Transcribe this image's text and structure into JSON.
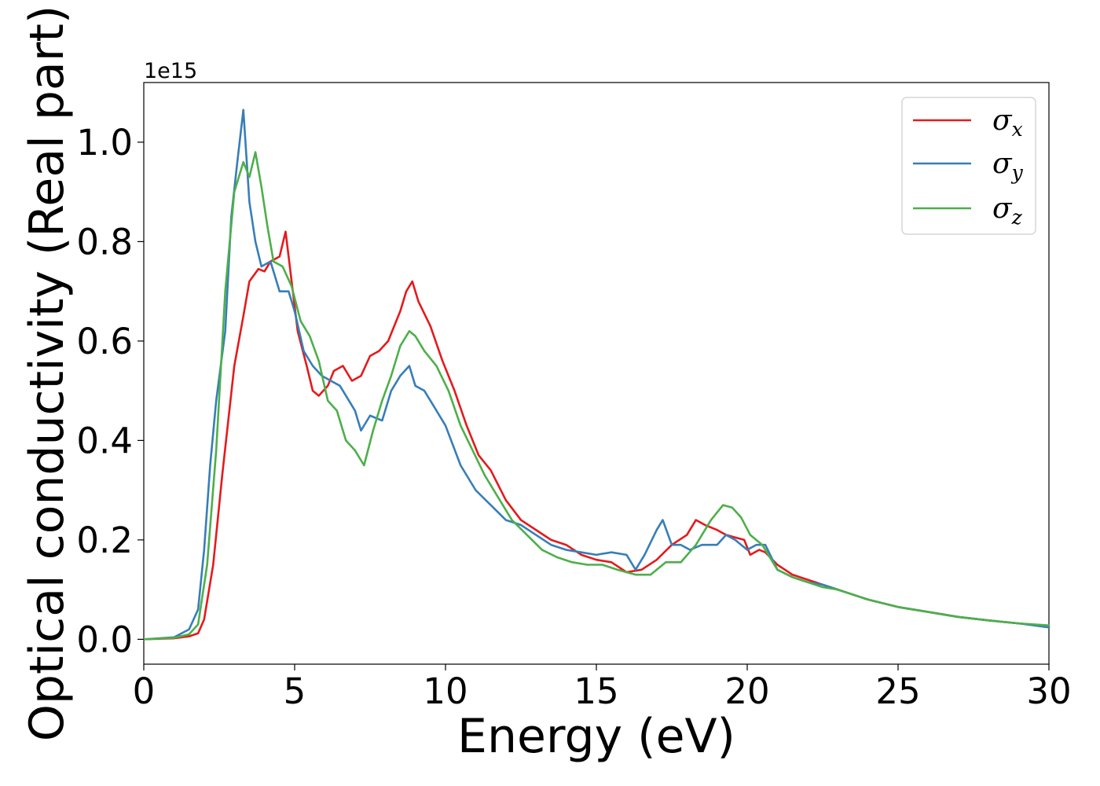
{
  "chart_data": {
    "type": "line",
    "xlabel": "Energy (eV)",
    "ylabel": "Optical conductivity (Real part)",
    "y_offset_label": "1e15",
    "xlim": [
      0,
      30
    ],
    "ylim": [
      -0.05,
      1.12
    ],
    "xticks": [
      0,
      5,
      10,
      15,
      20,
      25,
      30
    ],
    "yticks": [
      0.0,
      0.2,
      0.4,
      0.6,
      0.8,
      1.0
    ],
    "ytick_labels": [
      "0.0",
      "0.2",
      "0.4",
      "0.6",
      "0.8",
      "1.0"
    ],
    "grid": false,
    "legend_position": "top-right",
    "series": [
      {
        "name": "σx",
        "symbol": "σ",
        "subscript": "x",
        "color": "#e41a1c",
        "x": [
          0,
          1,
          1.5,
          1.8,
          2.0,
          2.3,
          2.6,
          3.0,
          3.3,
          3.5,
          3.8,
          4.0,
          4.2,
          4.5,
          4.7,
          4.9,
          5.1,
          5.4,
          5.6,
          5.8,
          6.1,
          6.3,
          6.6,
          6.9,
          7.2,
          7.5,
          7.8,
          8.1,
          8.3,
          8.5,
          8.7,
          8.9,
          9.1,
          9.5,
          9.9,
          10.3,
          10.7,
          11.1,
          11.5,
          12,
          12.5,
          13,
          13.5,
          14,
          14.5,
          15,
          15.5,
          16,
          16.5,
          17,
          17.5,
          18,
          18.3,
          18.6,
          19,
          19.3,
          19.6,
          19.9,
          20.1,
          20.4,
          20.6,
          21,
          21.5,
          22,
          22.5,
          23,
          23.5,
          24,
          25,
          26,
          27,
          28,
          29,
          30
        ],
        "y": [
          0,
          0.002,
          0.006,
          0.012,
          0.04,
          0.15,
          0.33,
          0.55,
          0.65,
          0.72,
          0.745,
          0.74,
          0.76,
          0.77,
          0.82,
          0.72,
          0.62,
          0.55,
          0.5,
          0.49,
          0.51,
          0.54,
          0.55,
          0.52,
          0.53,
          0.57,
          0.58,
          0.6,
          0.63,
          0.66,
          0.7,
          0.72,
          0.68,
          0.63,
          0.56,
          0.5,
          0.43,
          0.37,
          0.34,
          0.28,
          0.24,
          0.22,
          0.2,
          0.19,
          0.17,
          0.16,
          0.155,
          0.135,
          0.14,
          0.16,
          0.19,
          0.21,
          0.24,
          0.23,
          0.22,
          0.21,
          0.205,
          0.2,
          0.17,
          0.18,
          0.175,
          0.15,
          0.13,
          0.12,
          0.11,
          0.1,
          0.09,
          0.08,
          0.065,
          0.055,
          0.045,
          0.038,
          0.032,
          0.026
        ]
      },
      {
        "name": "σy",
        "symbol": "σ",
        "subscript": "y",
        "color": "#377eb8",
        "x": [
          0,
          1,
          1.5,
          1.8,
          2.0,
          2.2,
          2.4,
          2.7,
          2.9,
          3.1,
          3.3,
          3.5,
          3.7,
          3.9,
          4.2,
          4.5,
          4.8,
          5.0,
          5.3,
          5.6,
          5.9,
          6.2,
          6.5,
          6.8,
          7.0,
          7.2,
          7.5,
          7.9,
          8.2,
          8.5,
          8.8,
          9.0,
          9.3,
          9.6,
          10,
          10.5,
          11,
          11.5,
          12,
          12.5,
          13,
          13.5,
          14,
          14.5,
          15,
          15.5,
          16,
          16.3,
          16.6,
          17,
          17.2,
          17.5,
          17.8,
          18.1,
          18.5,
          19,
          19.3,
          19.6,
          20,
          20.3,
          20.6,
          21,
          21.5,
          22,
          22.5,
          23,
          23.5,
          24,
          25,
          26,
          27,
          28,
          29,
          30
        ],
        "y": [
          0,
          0.004,
          0.02,
          0.06,
          0.18,
          0.35,
          0.48,
          0.62,
          0.85,
          0.96,
          1.065,
          0.88,
          0.8,
          0.75,
          0.76,
          0.7,
          0.7,
          0.66,
          0.58,
          0.55,
          0.53,
          0.52,
          0.51,
          0.48,
          0.46,
          0.42,
          0.45,
          0.44,
          0.5,
          0.53,
          0.55,
          0.51,
          0.5,
          0.47,
          0.43,
          0.35,
          0.3,
          0.27,
          0.24,
          0.23,
          0.21,
          0.19,
          0.18,
          0.175,
          0.17,
          0.175,
          0.17,
          0.14,
          0.17,
          0.22,
          0.24,
          0.19,
          0.19,
          0.18,
          0.19,
          0.19,
          0.21,
          0.2,
          0.18,
          0.19,
          0.19,
          0.14,
          0.125,
          0.115,
          0.11,
          0.1,
          0.09,
          0.08,
          0.065,
          0.055,
          0.045,
          0.038,
          0.032,
          0.024
        ]
      },
      {
        "name": "σz",
        "symbol": "σ",
        "subscript": "z",
        "color": "#4daf4a",
        "x": [
          0,
          1,
          1.5,
          1.8,
          2.1,
          2.4,
          2.7,
          3.0,
          3.3,
          3.5,
          3.7,
          3.9,
          4.1,
          4.3,
          4.6,
          4.9,
          5.2,
          5.5,
          5.8,
          6.1,
          6.4,
          6.7,
          7.0,
          7.3,
          7.6,
          7.9,
          8.2,
          8.5,
          8.8,
          9.0,
          9.3,
          9.7,
          10.1,
          10.5,
          10.9,
          11.3,
          11.8,
          12.2,
          12.7,
          13.2,
          13.7,
          14.2,
          14.7,
          15.2,
          15.7,
          16.3,
          16.8,
          17.3,
          17.8,
          18.3,
          18.8,
          19.2,
          19.5,
          19.8,
          20.1,
          20.5,
          21,
          21.5,
          22,
          22.5,
          23,
          23.5,
          24,
          25,
          26,
          27,
          28,
          29,
          30
        ],
        "y": [
          0,
          0.003,
          0.01,
          0.03,
          0.15,
          0.38,
          0.7,
          0.9,
          0.96,
          0.93,
          0.98,
          0.91,
          0.83,
          0.76,
          0.75,
          0.71,
          0.64,
          0.61,
          0.56,
          0.48,
          0.46,
          0.4,
          0.38,
          0.35,
          0.42,
          0.48,
          0.53,
          0.59,
          0.62,
          0.61,
          0.58,
          0.55,
          0.5,
          0.43,
          0.38,
          0.33,
          0.28,
          0.24,
          0.21,
          0.18,
          0.165,
          0.155,
          0.15,
          0.15,
          0.14,
          0.13,
          0.13,
          0.155,
          0.155,
          0.19,
          0.24,
          0.27,
          0.265,
          0.245,
          0.21,
          0.19,
          0.14,
          0.125,
          0.115,
          0.105,
          0.1,
          0.09,
          0.08,
          0.065,
          0.055,
          0.045,
          0.038,
          0.032,
          0.028
        ]
      }
    ]
  }
}
